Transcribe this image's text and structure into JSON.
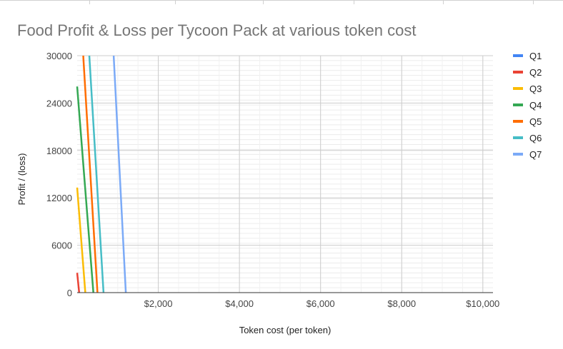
{
  "chart_data": {
    "type": "line",
    "title": "Food Profit &  Loss per Tycoon Pack at various token cost",
    "xlabel": "Token cost (per token)",
    "ylabel": "Profit / (loss)",
    "x_ticks": [
      {
        "value": 2000,
        "label": "$2,000"
      },
      {
        "value": 4000,
        "label": "$4,000"
      },
      {
        "value": 6000,
        "label": "$6,000"
      },
      {
        "value": 8000,
        "label": "$8,000"
      },
      {
        "value": 10000,
        "label": "$10,000"
      }
    ],
    "y_ticks": [
      {
        "value": 0,
        "label": "0"
      },
      {
        "value": 6000,
        "label": "6000"
      },
      {
        "value": 12000,
        "label": "12000"
      },
      {
        "value": 18000,
        "label": "18000"
      },
      {
        "value": 24000,
        "label": "24000"
      },
      {
        "value": 30000,
        "label": "30000"
      }
    ],
    "xlim": [
      0,
      10250
    ],
    "ylim": [
      0,
      30000
    ],
    "grid": true,
    "legend_position": "right",
    "series": [
      {
        "name": "Q1",
        "color": "#4285f4",
        "points": [
          [
            0,
            0
          ],
          [
            0,
            0
          ]
        ]
      },
      {
        "name": "Q2",
        "color": "#ea4335",
        "points": [
          [
            0,
            2500
          ],
          [
            50,
            0
          ]
        ]
      },
      {
        "name": "Q3",
        "color": "#fbbc04",
        "points": [
          [
            0,
            13300
          ],
          [
            200,
            0
          ]
        ]
      },
      {
        "name": "Q4",
        "color": "#34a853",
        "points": [
          [
            0,
            26100
          ],
          [
            400,
            0
          ]
        ]
      },
      {
        "name": "Q5",
        "color": "#ff6d01",
        "points": [
          [
            150,
            30000
          ],
          [
            500,
            0
          ]
        ]
      },
      {
        "name": "Q6",
        "color": "#46bdc6",
        "points": [
          [
            300,
            30000
          ],
          [
            650,
            0
          ]
        ]
      },
      {
        "name": "Q7",
        "color": "#7baaf7",
        "points": [
          [
            900,
            30000
          ],
          [
            1200,
            0
          ]
        ]
      }
    ]
  }
}
